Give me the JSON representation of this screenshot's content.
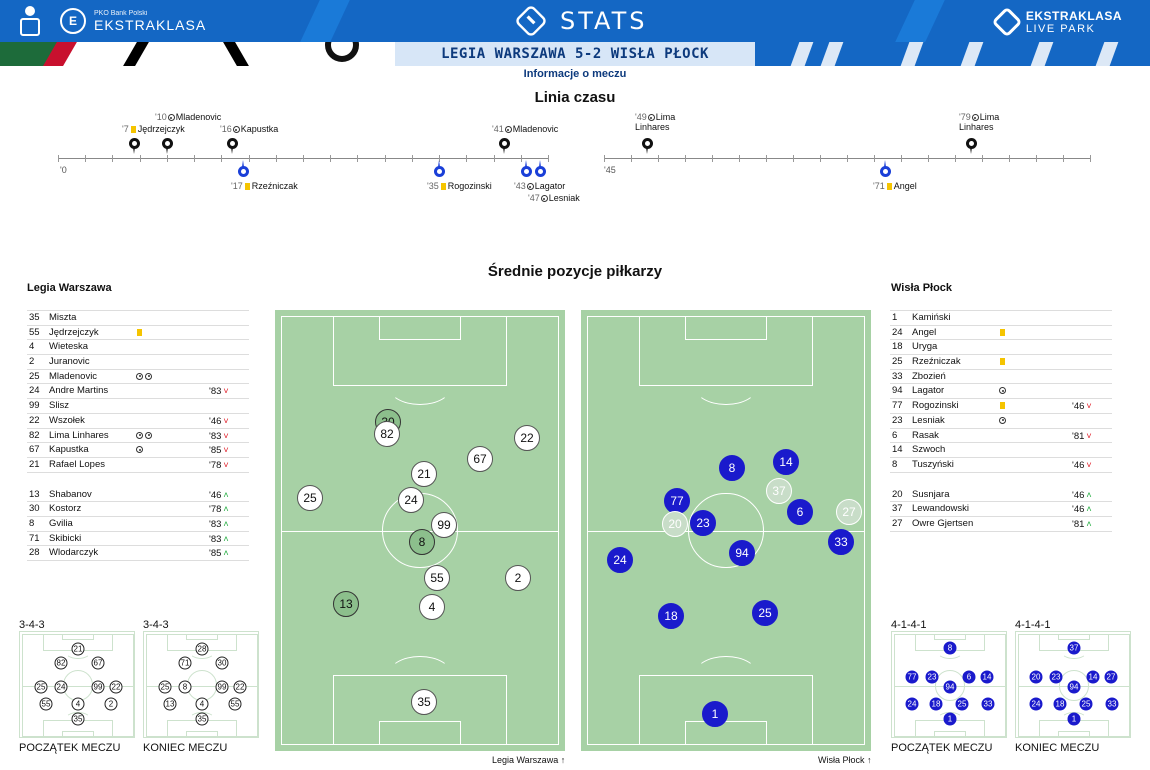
{
  "header": {
    "left_brand_small": "PKO Bank Polski",
    "left_brand_big": "EKSTRAKLASA",
    "center_logo": "STATS",
    "right_brand_line1": "EKSTRAKLASA",
    "right_brand_line2": "LIVE PARK",
    "match_title": "LEGIA WARSZAWA 5-2 WISŁA PŁOCK",
    "info_link": "Informacje o meczu",
    "colors": {
      "header_blue": "#1467c4",
      "title_bg": "#d7e6f7",
      "title_text": "#0d3a7d"
    }
  },
  "timeline": {
    "title": "Linia czasu",
    "first_half_start": "'0",
    "second_half_start": "'45",
    "first_half_events": [
      {
        "minute": "'7",
        "player": "Jędrzejczyk",
        "type": "yellow-card",
        "team": "legia"
      },
      {
        "minute": "'10",
        "player": "Mladenovic",
        "type": "goal",
        "team": "legia"
      },
      {
        "minute": "'16",
        "player": "Kapustka",
        "type": "goal",
        "team": "legia"
      },
      {
        "minute": "'17",
        "player": "Rzeźniczak",
        "type": "yellow-card",
        "team": "wisla"
      },
      {
        "minute": "'35",
        "player": "Rogozinski",
        "type": "yellow-card",
        "team": "wisla"
      },
      {
        "minute": "'41",
        "player": "Mladenovic",
        "type": "goal",
        "team": "legia"
      },
      {
        "minute": "'43",
        "player": "Lagator",
        "type": "goal",
        "team": "wisla"
      },
      {
        "minute": "'47",
        "player": "Lesniak",
        "type": "goal",
        "team": "wisla"
      }
    ],
    "second_half_events": [
      {
        "minute": "'49",
        "player": "Lima Linhares",
        "type": "goal",
        "team": "legia"
      },
      {
        "minute": "'71",
        "player": "Angel",
        "type": "yellow-card",
        "team": "wisla"
      },
      {
        "minute": "'79",
        "player": "Lima Linhares",
        "type": "goal",
        "team": "legia"
      }
    ]
  },
  "positions_title": "Średnie pozycje piłkarzy",
  "home": {
    "name": "Legia Warszawa",
    "starters": [
      {
        "num": "35",
        "name": "Miszta",
        "icons": "",
        "min": "",
        "dir": ""
      },
      {
        "num": "55",
        "name": "Jędrzejczyk",
        "icons": "yellow",
        "min": "",
        "dir": ""
      },
      {
        "num": "4",
        "name": "Wieteska",
        "icons": "",
        "min": "",
        "dir": ""
      },
      {
        "num": "2",
        "name": "Juranovic",
        "icons": "",
        "min": "",
        "dir": ""
      },
      {
        "num": "25",
        "name": "Mladenovic",
        "icons": "goal2",
        "min": "",
        "dir": ""
      },
      {
        "num": "24",
        "name": "Andre Martins",
        "icons": "",
        "min": "'83",
        "dir": "down"
      },
      {
        "num": "99",
        "name": "Slisz",
        "icons": "",
        "min": "",
        "dir": ""
      },
      {
        "num": "22",
        "name": "Wszołek",
        "icons": "",
        "min": "'46",
        "dir": "down"
      },
      {
        "num": "82",
        "name": "Lima Linhares",
        "icons": "goal2",
        "min": "'83",
        "dir": "down"
      },
      {
        "num": "67",
        "name": "Kapustka",
        "icons": "goal",
        "min": "'85",
        "dir": "down"
      },
      {
        "num": "21",
        "name": "Rafael Lopes",
        "icons": "",
        "min": "'78",
        "dir": "down"
      }
    ],
    "subs": [
      {
        "num": "13",
        "name": "Shabanov",
        "icons": "",
        "min": "'46",
        "dir": "up"
      },
      {
        "num": "30",
        "name": "Kostorz",
        "icons": "",
        "min": "'78",
        "dir": "up"
      },
      {
        "num": "8",
        "name": "Gvilia",
        "icons": "",
        "min": "'83",
        "dir": "up"
      },
      {
        "num": "71",
        "name": "Skibicki",
        "icons": "",
        "min": "'83",
        "dir": "up"
      },
      {
        "num": "28",
        "name": "Wlodarczyk",
        "icons": "",
        "min": "'85",
        "dir": "up"
      }
    ],
    "pitch_caption": "Legia Warszawa",
    "formation_start": "3-4-3",
    "formation_end": "3-4-3",
    "caption_start": "POCZĄTEK MECZU",
    "caption_end": "KONIEC MECZU"
  },
  "away": {
    "name": "Wisła Płock",
    "starters": [
      {
        "num": "1",
        "name": "Kamiński",
        "icons": "",
        "min": "",
        "dir": ""
      },
      {
        "num": "24",
        "name": "Angel",
        "icons": "yellow",
        "min": "",
        "dir": ""
      },
      {
        "num": "18",
        "name": "Uryga",
        "icons": "",
        "min": "",
        "dir": ""
      },
      {
        "num": "25",
        "name": "Rzeźniczak",
        "icons": "yellow",
        "min": "",
        "dir": ""
      },
      {
        "num": "33",
        "name": "Zbozień",
        "icons": "",
        "min": "",
        "dir": ""
      },
      {
        "num": "94",
        "name": "Lagator",
        "icons": "goal",
        "min": "",
        "dir": ""
      },
      {
        "num": "77",
        "name": "Rogozinski",
        "icons": "yellow",
        "min": "'46",
        "dir": "down"
      },
      {
        "num": "23",
        "name": "Lesniak",
        "icons": "goal",
        "min": "",
        "dir": ""
      },
      {
        "num": "6",
        "name": "Rasak",
        "icons": "",
        "min": "'81",
        "dir": "down"
      },
      {
        "num": "14",
        "name": "Szwoch",
        "icons": "",
        "min": "",
        "dir": ""
      },
      {
        "num": "8",
        "name": "Tuszyński",
        "icons": "",
        "min": "'46",
        "dir": "down"
      }
    ],
    "subs": [
      {
        "num": "20",
        "name": "Susnjara",
        "icons": "",
        "min": "'46",
        "dir": "up"
      },
      {
        "num": "37",
        "name": "Lewandowski",
        "icons": "",
        "min": "'46",
        "dir": "up"
      },
      {
        "num": "27",
        "name": "Owre Gjertsen",
        "icons": "",
        "min": "'81",
        "dir": "up"
      }
    ],
    "pitch_caption": "Wisła Płock",
    "formation_start": "4-1-4-1",
    "formation_end": "4-1-4-1",
    "caption_start": "POCZĄTEK MECZU",
    "caption_end": "KONIEC MECZU"
  }
}
